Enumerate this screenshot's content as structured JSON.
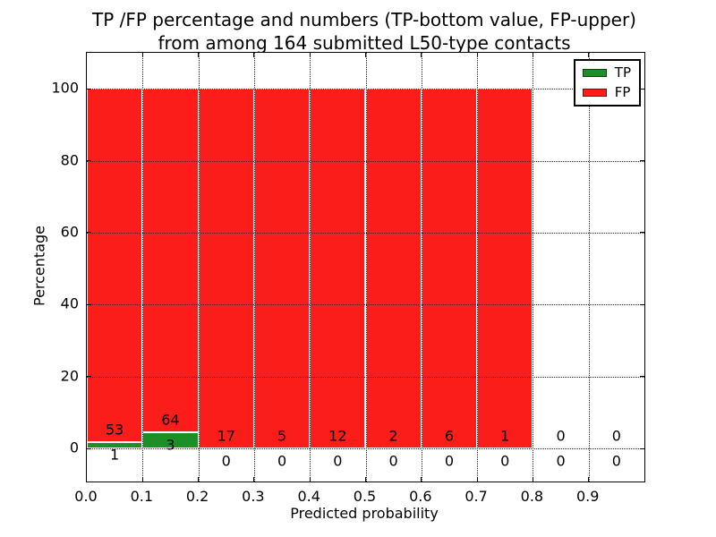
{
  "title": {
    "line1": "TP /FP percentage and numbers (TP-bottom value, FP-upper)",
    "line2": "from among 164 submitted L50-type contacts"
  },
  "chart_data": {
    "type": "bar",
    "stacked": true,
    "title": "TP /FP percentage and numbers (TP-bottom value, FP-upper) from among 164 submitted L50-type contacts",
    "xlabel": "Predicted probability",
    "ylabel": "Percentage",
    "xlim": [
      0.0,
      1.0
    ],
    "ylim": [
      -9.2,
      110
    ],
    "grid": "dotted",
    "bin_width": 0.1,
    "categories": [
      "0.0-0.1",
      "0.1-0.2",
      "0.2-0.3",
      "0.3-0.4",
      "0.4-0.5",
      "0.5-0.6",
      "0.6-0.7",
      "0.7-0.8",
      "0.8-0.9",
      "0.9-1.0"
    ],
    "series": [
      {
        "name": "TP",
        "color": "#1d8f27",
        "counts": [
          1,
          3,
          0,
          0,
          0,
          0,
          0,
          0,
          0,
          0
        ],
        "pct": [
          1.852,
          4.478,
          0,
          0,
          0,
          0,
          0,
          0,
          0,
          0
        ]
      },
      {
        "name": "FP",
        "color": "#fa1d1a",
        "counts": [
          53,
          64,
          17,
          5,
          12,
          2,
          6,
          1,
          0,
          0
        ],
        "pct": [
          98.148,
          95.522,
          100,
          100,
          100,
          100,
          100,
          100,
          0,
          0
        ]
      }
    ],
    "bins": [
      {
        "x0": 0.0,
        "x1": 0.1,
        "tp": 1,
        "fp": 53,
        "tp_pct": 1.852,
        "total_pct": 100
      },
      {
        "x0": 0.1,
        "x1": 0.2,
        "tp": 3,
        "fp": 64,
        "tp_pct": 4.478,
        "total_pct": 100
      },
      {
        "x0": 0.2,
        "x1": 0.3,
        "tp": 0,
        "fp": 17,
        "tp_pct": 0,
        "total_pct": 100
      },
      {
        "x0": 0.3,
        "x1": 0.4,
        "tp": 0,
        "fp": 5,
        "tp_pct": 0,
        "total_pct": 100
      },
      {
        "x0": 0.4,
        "x1": 0.5,
        "tp": 0,
        "fp": 12,
        "tp_pct": 0,
        "total_pct": 100
      },
      {
        "x0": 0.5,
        "x1": 0.6,
        "tp": 0,
        "fp": 2,
        "tp_pct": 0,
        "total_pct": 100
      },
      {
        "x0": 0.6,
        "x1": 0.7,
        "tp": 0,
        "fp": 6,
        "tp_pct": 0,
        "total_pct": 100
      },
      {
        "x0": 0.7,
        "x1": 0.8,
        "tp": 0,
        "fp": 1,
        "tp_pct": 0,
        "total_pct": 100
      },
      {
        "x0": 0.8,
        "x1": 0.9,
        "tp": 0,
        "fp": 0,
        "tp_pct": 0,
        "total_pct": 0
      },
      {
        "x0": 0.9,
        "x1": 1.0,
        "tp": 0,
        "fp": 0,
        "tp_pct": 0,
        "total_pct": 0
      }
    ],
    "xticks": [
      {
        "v": 0.0,
        "label": "0.0"
      },
      {
        "v": 0.1,
        "label": "0.1"
      },
      {
        "v": 0.2,
        "label": "0.2"
      },
      {
        "v": 0.3,
        "label": "0.3"
      },
      {
        "v": 0.4,
        "label": "0.4"
      },
      {
        "v": 0.5,
        "label": "0.5"
      },
      {
        "v": 0.6,
        "label": "0.6"
      },
      {
        "v": 0.7,
        "label": "0.7"
      },
      {
        "v": 0.8,
        "label": "0.8"
      },
      {
        "v": 0.9,
        "label": "0.9"
      }
    ],
    "yticks": [
      {
        "v": 0,
        "label": "0"
      },
      {
        "v": 20,
        "label": "20"
      },
      {
        "v": 40,
        "label": "40"
      },
      {
        "v": 60,
        "label": "60"
      },
      {
        "v": 80,
        "label": "80"
      },
      {
        "v": 100,
        "label": "100"
      }
    ],
    "legend": {
      "position": "upper right",
      "entries": [
        {
          "label": "TP",
          "color": "#1d8f27"
        },
        {
          "label": "FP",
          "color": "#fa1d1a"
        }
      ]
    },
    "colors": {
      "tp_green": "#1d8f27",
      "fp_red": "#fa1d1a",
      "grid": "#2b2b2b",
      "spine": "#000000"
    }
  }
}
